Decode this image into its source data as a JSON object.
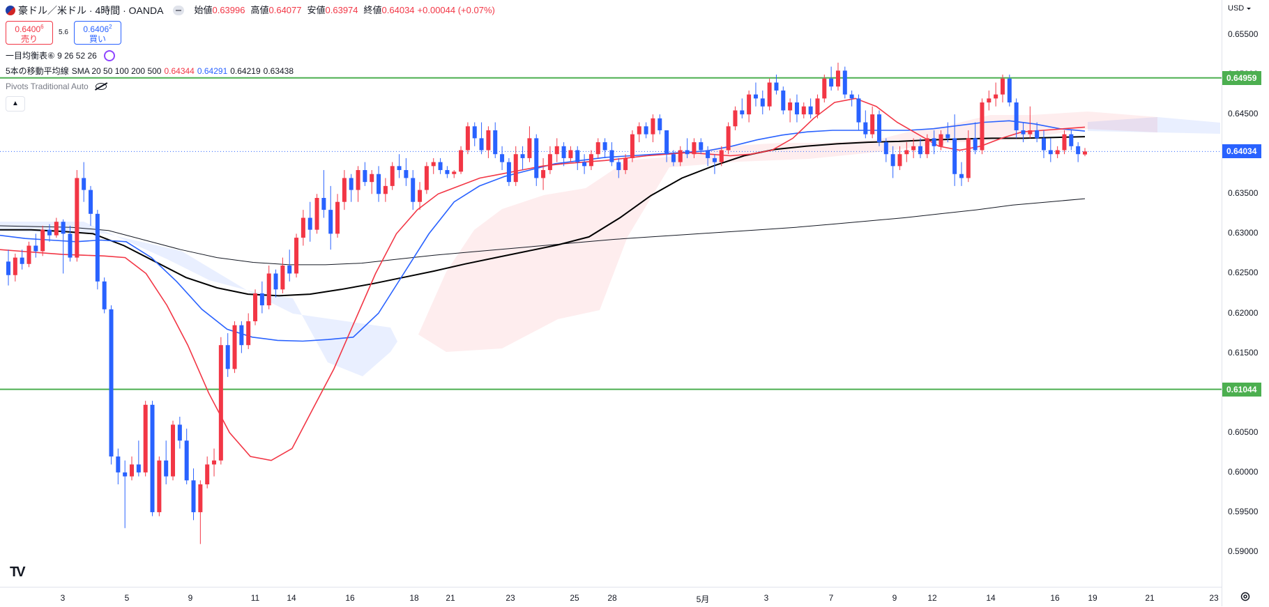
{
  "header": {
    "title": "豪ドル／米ドル · 4時間 · OANDA",
    "flag_icon": "aud-usd-flag-icon",
    "ohlc": [
      {
        "label": "始値",
        "value": "0.63996"
      },
      {
        "label": "高値",
        "value": "0.64077"
      },
      {
        "label": "安値",
        "value": "0.63974"
      },
      {
        "label": "終値",
        "value": "0.64034"
      }
    ],
    "change": "+0.00044 (+0.07%)"
  },
  "trade": {
    "sell_price": "0.6400",
    "sell_price_sup": "6",
    "sell_label": "売り",
    "spread": "5.6",
    "buy_price": "0.6406",
    "buy_price_sup": "2",
    "buy_label": "買い"
  },
  "indicators": {
    "ichimoku": "一目均衡表⑥ 9 26 52 26",
    "sma_name": "5本の移動平均線",
    "sma_params": "SMA 20 50 100 200 500",
    "sma_values": [
      {
        "value": "0.64344",
        "color": "#f23645"
      },
      {
        "value": "0.64291",
        "color": "#2962ff"
      },
      {
        "value": "0.64219",
        "color": "#131722"
      },
      {
        "value": "0.63438",
        "color": "#131722"
      }
    ],
    "pivots": "Pivots Traditional Auto"
  },
  "price_axis": {
    "currency": "USD",
    "ticks": [
      "0.65500",
      "0.65000",
      "0.64500",
      "0.64000",
      "0.63500",
      "0.63000",
      "0.62500",
      "0.62000",
      "0.61500",
      "0.61000",
      "0.60500",
      "0.60000",
      "0.59500",
      "0.59000"
    ],
    "tags": [
      {
        "value": "0.64959",
        "color": "#4caf50"
      },
      {
        "value": "0.64034",
        "color": "#2962ff"
      },
      {
        "value": "0.61044",
        "color": "#4caf50"
      }
    ]
  },
  "time_axis": {
    "ticks": [
      "3",
      "5",
      "9",
      "11",
      "14",
      "16",
      "18",
      "21",
      "23",
      "25",
      "28",
      "5月",
      "3",
      "7",
      "9",
      "12",
      "14",
      "16",
      "19",
      "21",
      "23"
    ]
  },
  "chart_data": {
    "type": "candlestick",
    "ylim": [
      0.5865,
      0.6585
    ],
    "horizontal_lines": [
      0.64959,
      0.61044
    ],
    "last_price": 0.64034,
    "candles_ohlc": [
      [
        0.6265,
        0.628,
        0.6235,
        0.6248
      ],
      [
        0.6248,
        0.6275,
        0.624,
        0.627
      ],
      [
        0.627,
        0.628,
        0.6255,
        0.6262
      ],
      [
        0.6262,
        0.629,
        0.6258,
        0.6285
      ],
      [
        0.6285,
        0.63,
        0.627,
        0.6278
      ],
      [
        0.6278,
        0.631,
        0.6272,
        0.6305
      ],
      [
        0.6305,
        0.6312,
        0.629,
        0.6298
      ],
      [
        0.6298,
        0.632,
        0.6295,
        0.6315
      ],
      [
        0.6315,
        0.6318,
        0.625,
        0.63
      ],
      [
        0.63,
        0.631,
        0.6265,
        0.627
      ],
      [
        0.627,
        0.638,
        0.6265,
        0.637
      ],
      [
        0.637,
        0.639,
        0.634,
        0.6355
      ],
      [
        0.6355,
        0.636,
        0.631,
        0.6325
      ],
      [
        0.6325,
        0.633,
        0.623,
        0.624
      ],
      [
        0.624,
        0.6245,
        0.62,
        0.6205
      ],
      [
        0.6205,
        0.621,
        0.601,
        0.602
      ],
      [
        0.602,
        0.603,
        0.5985,
        0.6
      ],
      [
        0.6,
        0.6015,
        0.593,
        0.5995
      ],
      [
        0.5995,
        0.602,
        0.599,
        0.601
      ],
      [
        0.601,
        0.604,
        0.5995,
        0.6
      ],
      [
        0.6,
        0.609,
        0.5995,
        0.6085
      ],
      [
        0.6085,
        0.609,
        0.5945,
        0.595
      ],
      [
        0.595,
        0.602,
        0.5945,
        0.6015
      ],
      [
        0.6015,
        0.604,
        0.5985,
        0.5995
      ],
      [
        0.5995,
        0.6065,
        0.599,
        0.606
      ],
      [
        0.606,
        0.607,
        0.603,
        0.604
      ],
      [
        0.604,
        0.6055,
        0.5985,
        0.599
      ],
      [
        0.599,
        0.6005,
        0.594,
        0.595
      ],
      [
        0.595,
        0.599,
        0.591,
        0.5985
      ],
      [
        0.5985,
        0.602,
        0.598,
        0.601
      ],
      [
        0.601,
        0.603,
        0.5995,
        0.6015
      ],
      [
        0.6015,
        0.617,
        0.601,
        0.616
      ],
      [
        0.616,
        0.6175,
        0.612,
        0.613
      ],
      [
        0.613,
        0.619,
        0.6125,
        0.6185
      ],
      [
        0.6185,
        0.619,
        0.615,
        0.616
      ],
      [
        0.616,
        0.62,
        0.6155,
        0.619
      ],
      [
        0.619,
        0.623,
        0.6185,
        0.6225
      ],
      [
        0.6225,
        0.624,
        0.62,
        0.621
      ],
      [
        0.621,
        0.626,
        0.6205,
        0.625
      ],
      [
        0.625,
        0.6255,
        0.622,
        0.623
      ],
      [
        0.623,
        0.627,
        0.6225,
        0.626
      ],
      [
        0.626,
        0.628,
        0.624,
        0.625
      ],
      [
        0.625,
        0.63,
        0.6245,
        0.6295
      ],
      [
        0.6295,
        0.633,
        0.6285,
        0.632
      ],
      [
        0.632,
        0.634,
        0.629,
        0.6305
      ],
      [
        0.6305,
        0.635,
        0.63,
        0.6345
      ],
      [
        0.6345,
        0.638,
        0.632,
        0.633
      ],
      [
        0.633,
        0.636,
        0.628,
        0.63
      ],
      [
        0.63,
        0.635,
        0.6295,
        0.634
      ],
      [
        0.634,
        0.638,
        0.633,
        0.637
      ],
      [
        0.637,
        0.6375,
        0.634,
        0.6355
      ],
      [
        0.6355,
        0.6385,
        0.634,
        0.638
      ],
      [
        0.638,
        0.639,
        0.636,
        0.6365
      ],
      [
        0.6365,
        0.638,
        0.635,
        0.6375
      ],
      [
        0.6375,
        0.6385,
        0.634,
        0.635
      ],
      [
        0.635,
        0.637,
        0.634,
        0.636
      ],
      [
        0.636,
        0.639,
        0.6355,
        0.6385
      ],
      [
        0.6385,
        0.64,
        0.637,
        0.638
      ],
      [
        0.638,
        0.6395,
        0.636,
        0.637
      ],
      [
        0.637,
        0.638,
        0.633,
        0.634
      ],
      [
        0.634,
        0.6365,
        0.633,
        0.6355
      ],
      [
        0.6355,
        0.639,
        0.635,
        0.6385
      ],
      [
        0.6385,
        0.6395,
        0.6375,
        0.639
      ],
      [
        0.639,
        0.6395,
        0.6375,
        0.638
      ],
      [
        0.638,
        0.6385,
        0.637,
        0.6375
      ],
      [
        0.6375,
        0.638,
        0.637,
        0.6378
      ],
      [
        0.6378,
        0.641,
        0.6375,
        0.6405
      ],
      [
        0.6405,
        0.644,
        0.64,
        0.6435
      ],
      [
        0.6435,
        0.644,
        0.641,
        0.642
      ],
      [
        0.642,
        0.644,
        0.64,
        0.6405
      ],
      [
        0.6405,
        0.6435,
        0.6395,
        0.643
      ],
      [
        0.643,
        0.644,
        0.6395,
        0.64
      ],
      [
        0.64,
        0.641,
        0.638,
        0.639
      ],
      [
        0.639,
        0.6395,
        0.636,
        0.6365
      ],
      [
        0.6365,
        0.641,
        0.636,
        0.64
      ],
      [
        0.64,
        0.641,
        0.638,
        0.6395
      ],
      [
        0.6395,
        0.6435,
        0.639,
        0.642
      ],
      [
        0.642,
        0.6425,
        0.636,
        0.637
      ],
      [
        0.637,
        0.6395,
        0.6355,
        0.638
      ],
      [
        0.638,
        0.641,
        0.6375,
        0.64
      ],
      [
        0.64,
        0.642,
        0.639,
        0.641
      ],
      [
        0.641,
        0.6415,
        0.6385,
        0.6395
      ],
      [
        0.6395,
        0.641,
        0.639,
        0.6405
      ],
      [
        0.6405,
        0.641,
        0.638,
        0.639
      ],
      [
        0.639,
        0.64,
        0.6375,
        0.6385
      ],
      [
        0.6385,
        0.6405,
        0.638,
        0.64
      ],
      [
        0.64,
        0.642,
        0.6395,
        0.6415
      ],
      [
        0.6415,
        0.642,
        0.6395,
        0.6405
      ],
      [
        0.6405,
        0.6415,
        0.6385,
        0.639
      ],
      [
        0.639,
        0.6395,
        0.637,
        0.638
      ],
      [
        0.638,
        0.64,
        0.6375,
        0.6395
      ],
      [
        0.6395,
        0.643,
        0.639,
        0.6425
      ],
      [
        0.6425,
        0.644,
        0.6415,
        0.6435
      ],
      [
        0.6435,
        0.644,
        0.642,
        0.6425
      ],
      [
        0.6425,
        0.645,
        0.6415,
        0.6445
      ],
      [
        0.6445,
        0.645,
        0.6425,
        0.643
      ],
      [
        0.643,
        0.641,
        0.639,
        0.64
      ],
      [
        0.64,
        0.6405,
        0.6385,
        0.639
      ],
      [
        0.639,
        0.641,
        0.6385,
        0.6405
      ],
      [
        0.6405,
        0.642,
        0.6395,
        0.64
      ],
      [
        0.64,
        0.642,
        0.6395,
        0.6415
      ],
      [
        0.6415,
        0.642,
        0.64,
        0.6405
      ],
      [
        0.6405,
        0.641,
        0.6385,
        0.6395
      ],
      [
        0.6395,
        0.64,
        0.6375,
        0.639
      ],
      [
        0.639,
        0.641,
        0.6385,
        0.6405
      ],
      [
        0.6405,
        0.644,
        0.64,
        0.6435
      ],
      [
        0.6435,
        0.646,
        0.643,
        0.6455
      ],
      [
        0.6455,
        0.647,
        0.6445,
        0.645
      ],
      [
        0.645,
        0.648,
        0.644,
        0.6475
      ],
      [
        0.6475,
        0.649,
        0.646,
        0.647
      ],
      [
        0.647,
        0.648,
        0.645,
        0.646
      ],
      [
        0.646,
        0.6495,
        0.6455,
        0.649
      ],
      [
        0.649,
        0.65,
        0.6475,
        0.648
      ],
      [
        0.648,
        0.6485,
        0.645,
        0.6455
      ],
      [
        0.6455,
        0.647,
        0.644,
        0.6465
      ],
      [
        0.6465,
        0.6475,
        0.644,
        0.645
      ],
      [
        0.645,
        0.6465,
        0.6445,
        0.646
      ],
      [
        0.646,
        0.647,
        0.6445,
        0.645
      ],
      [
        0.645,
        0.6475,
        0.6445,
        0.647
      ],
      [
        0.647,
        0.65,
        0.6465,
        0.6495
      ],
      [
        0.6495,
        0.651,
        0.648,
        0.6485
      ],
      [
        0.6485,
        0.6515,
        0.648,
        0.6505
      ],
      [
        0.6505,
        0.651,
        0.647,
        0.6475
      ],
      [
        0.6475,
        0.648,
        0.646,
        0.647
      ],
      [
        0.647,
        0.6475,
        0.643,
        0.644
      ],
      [
        0.644,
        0.6455,
        0.642,
        0.6425
      ],
      [
        0.6425,
        0.646,
        0.642,
        0.645
      ],
      [
        0.645,
        0.6455,
        0.641,
        0.6415
      ],
      [
        0.6415,
        0.642,
        0.639,
        0.64
      ],
      [
        0.64,
        0.641,
        0.637,
        0.6385
      ],
      [
        0.6385,
        0.641,
        0.638,
        0.64
      ],
      [
        0.64,
        0.6415,
        0.639,
        0.6405
      ],
      [
        0.6405,
        0.642,
        0.6395,
        0.641
      ],
      [
        0.641,
        0.642,
        0.6395,
        0.64
      ],
      [
        0.64,
        0.6425,
        0.6395,
        0.642
      ],
      [
        0.642,
        0.643,
        0.64,
        0.641
      ],
      [
        0.641,
        0.643,
        0.6405,
        0.6425
      ],
      [
        0.6425,
        0.644,
        0.6415,
        0.642
      ],
      [
        0.642,
        0.645,
        0.636,
        0.6375
      ],
      [
        0.6375,
        0.639,
        0.636,
        0.637
      ],
      [
        0.637,
        0.643,
        0.6365,
        0.642
      ],
      [
        0.642,
        0.644,
        0.64,
        0.6405
      ],
      [
        0.6405,
        0.647,
        0.64,
        0.6465
      ],
      [
        0.6465,
        0.648,
        0.6455,
        0.647
      ],
      [
        0.647,
        0.649,
        0.646,
        0.6475
      ],
      [
        0.6475,
        0.65,
        0.6465,
        0.6495
      ],
      [
        0.6495,
        0.65,
        0.646,
        0.6465
      ],
      [
        0.6465,
        0.647,
        0.642,
        0.643
      ],
      [
        0.643,
        0.644,
        0.6415,
        0.6425
      ],
      [
        0.6425,
        0.646,
        0.642,
        0.643
      ],
      [
        0.643,
        0.644,
        0.6415,
        0.642
      ],
      [
        0.642,
        0.643,
        0.6395,
        0.6405
      ],
      [
        0.6405,
        0.642,
        0.639,
        0.64
      ],
      [
        0.64,
        0.641,
        0.6395,
        0.6405
      ],
      [
        0.6405,
        0.643,
        0.64,
        0.6425
      ],
      [
        0.6425,
        0.643,
        0.6405,
        0.641
      ],
      [
        0.641,
        0.6415,
        0.639,
        0.64
      ],
      [
        0.63996,
        0.64077,
        0.63974,
        0.64034
      ]
    ],
    "sma20": [
      0.628,
      0.6278,
      0.6276,
      0.6274,
      0.6273,
      0.6272,
      0.627,
      0.625,
      0.621,
      0.616,
      0.61,
      0.605,
      0.602,
      0.6015,
      0.603,
      0.608,
      0.613,
      0.619,
      0.625,
      0.63,
      0.633,
      0.635,
      0.636,
      0.637,
      0.6375,
      0.638,
      0.6385,
      0.6388,
      0.639,
      0.6392,
      0.6395,
      0.6398,
      0.64,
      0.6402,
      0.64,
      0.6398,
      0.64,
      0.6405,
      0.642,
      0.6445,
      0.6465,
      0.647,
      0.646,
      0.644,
      0.6425,
      0.641,
      0.6405,
      0.641,
      0.642,
      0.6428,
      0.643,
      0.6432,
      0.6434
    ],
    "sma50": [
      0.6298,
      0.6294,
      0.6292,
      0.629,
      0.6292,
      0.629,
      0.627,
      0.624,
      0.6205,
      0.618,
      0.617,
      0.6166,
      0.6165,
      0.6167,
      0.617,
      0.62,
      0.625,
      0.63,
      0.634,
      0.636,
      0.6372,
      0.638,
      0.6388,
      0.6392,
      0.6396,
      0.6398,
      0.64,
      0.6402,
      0.6404,
      0.641,
      0.6418,
      0.6424,
      0.6428,
      0.643,
      0.643,
      0.643,
      0.643,
      0.6432,
      0.6436,
      0.644,
      0.6442,
      0.6438,
      0.6432,
      0.6429
    ],
    "sma100": [
      0.6305,
      0.6305,
      0.6303,
      0.63,
      0.6285,
      0.6265,
      0.6245,
      0.6232,
      0.6224,
      0.6222,
      0.6224,
      0.623,
      0.6237,
      0.6245,
      0.6253,
      0.6262,
      0.627,
      0.6278,
      0.6286,
      0.6296,
      0.632,
      0.6348,
      0.637,
      0.6385,
      0.6398,
      0.6406,
      0.641,
      0.6413,
      0.6415,
      0.6416,
      0.6418,
      0.6419,
      0.642,
      0.642,
      0.6421,
      0.6422
    ],
    "sma200": [
      0.631,
      0.6309,
      0.6308,
      0.6304,
      0.6292,
      0.628,
      0.627,
      0.6264,
      0.6261,
      0.6261,
      0.6263,
      0.6268,
      0.6273,
      0.6277,
      0.6281,
      0.6285,
      0.6289,
      0.6293,
      0.6296,
      0.6299,
      0.6302,
      0.6305,
      0.6308,
      0.6312,
      0.6316,
      0.632,
      0.6325,
      0.633,
      0.6336,
      0.634,
      0.6344
    ]
  }
}
